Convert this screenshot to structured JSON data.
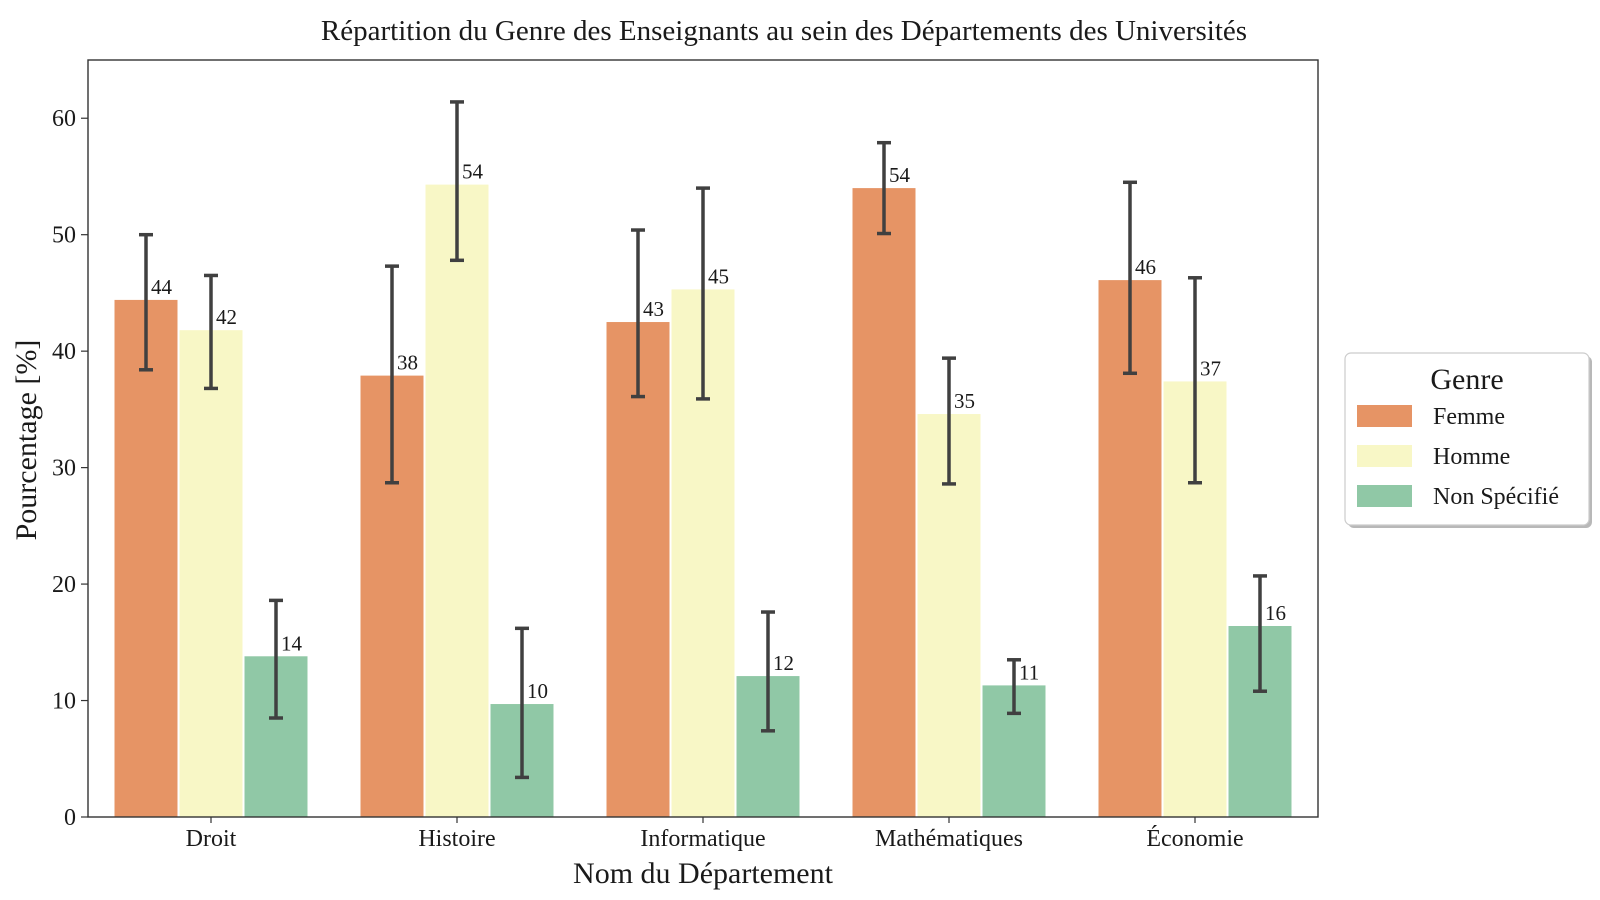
{
  "chart_data": {
    "type": "bar",
    "title": "Répartition du Genre des Enseignants au sein des Départements des Universités",
    "xlabel": "Nom du Département",
    "ylabel": "Pourcentage [%]",
    "ylim": [
      0,
      65
    ],
    "yticks": [
      0,
      10,
      20,
      30,
      40,
      50,
      60
    ],
    "grid": false,
    "legend": {
      "title": "Genre",
      "placement": "right"
    },
    "categories": [
      "Droit",
      "Histoire",
      "Informatique",
      "Mathématiques",
      "Économie"
    ],
    "series": [
      {
        "name": "Femme",
        "color": "#e69465",
        "values": [
          44.4,
          37.9,
          42.5,
          54.0,
          46.1
        ],
        "error_low": [
          38.4,
          28.7,
          36.1,
          50.1,
          38.1
        ],
        "error_high": [
          50.0,
          47.3,
          50.4,
          57.9,
          54.5
        ],
        "labels": [
          "44",
          "38",
          "43",
          "54",
          "46"
        ]
      },
      {
        "name": "Homme",
        "color": "#f8f7c6",
        "values": [
          41.8,
          54.3,
          45.3,
          34.6,
          37.4
        ],
        "error_low": [
          36.8,
          47.8,
          35.9,
          28.6,
          28.7
        ],
        "error_high": [
          46.5,
          61.4,
          54.0,
          39.4,
          46.3
        ],
        "labels": [
          "42",
          "54",
          "45",
          "35",
          "37"
        ]
      },
      {
        "name": "Non Spécifié",
        "color": "#90c8a6",
        "values": [
          13.8,
          9.7,
          12.1,
          11.3,
          16.4
        ],
        "error_low": [
          8.5,
          3.4,
          7.4,
          8.9,
          10.8
        ],
        "error_high": [
          18.6,
          16.2,
          17.6,
          13.5,
          20.7
        ],
        "labels": [
          "14",
          "10",
          "12",
          "11",
          "16"
        ]
      }
    ]
  }
}
